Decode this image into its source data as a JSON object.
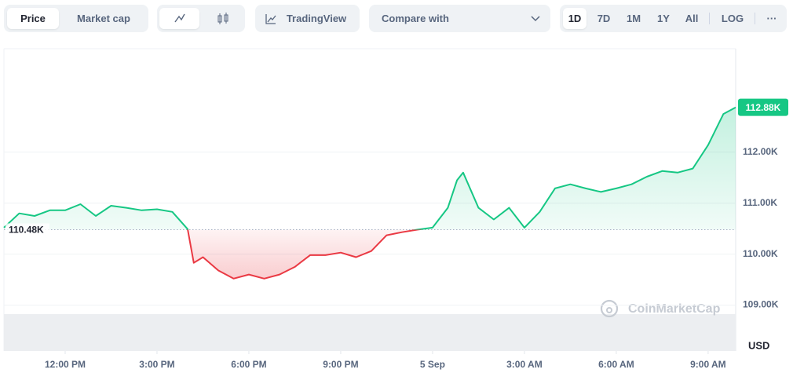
{
  "toolbar": {
    "tabs": [
      "Price",
      "Market cap"
    ],
    "tradingview": "TradingView",
    "compare": "Compare with",
    "ranges": [
      "1D",
      "7D",
      "1M",
      "1Y",
      "All"
    ],
    "log": "LOG",
    "more": "···"
  },
  "chart_data": {
    "type": "line",
    "x": [
      -2,
      -1.5,
      -1,
      -0.5,
      0,
      0.5,
      1,
      1.5,
      2,
      2.5,
      3,
      3.5,
      4,
      4.2,
      4.5,
      5,
      5.5,
      6,
      6.5,
      7,
      7.5,
      8,
      8.5,
      9,
      9.5,
      10,
      10.5,
      11,
      11.5,
      12,
      12.5,
      12.8,
      13,
      13.5,
      14,
      14.5,
      15,
      15.5,
      16,
      16.5,
      17,
      17.5,
      18,
      18.5,
      19,
      19.5,
      20,
      20.5,
      21,
      21.5,
      21.9
    ],
    "values": [
      110520,
      110800,
      110750,
      110860,
      110860,
      110980,
      110750,
      110950,
      110910,
      110860,
      110880,
      110830,
      110490,
      109830,
      109940,
      109680,
      109520,
      109600,
      109520,
      109600,
      109750,
      109980,
      109980,
      110030,
      109940,
      110060,
      110370,
      110430,
      110480,
      110520,
      110910,
      111450,
      111600,
      110910,
      110680,
      110910,
      110520,
      110830,
      111290,
      111370,
      111290,
      111220,
      111290,
      111370,
      111520,
      111630,
      111600,
      111680,
      112140,
      112750,
      112880
    ],
    "color_up": "#16c784",
    "color_down": "#ea3943",
    "baseline": {
      "value": 110480,
      "label": "110.48K"
    },
    "current": {
      "value": 112880,
      "label": "112.88K"
    },
    "xlim": [
      -2,
      21.9
    ],
    "xticks": [
      {
        "value": 0,
        "label": "12:00 PM"
      },
      {
        "value": 3,
        "label": "3:00 PM"
      },
      {
        "value": 6,
        "label": "6:00 PM"
      },
      {
        "value": 9,
        "label": "9:00 PM"
      },
      {
        "value": 12,
        "label": "5 Sep"
      },
      {
        "value": 15,
        "label": "3:00 AM"
      },
      {
        "value": 18,
        "label": "6:00 AM"
      },
      {
        "value": 21,
        "label": "9:00 AM"
      }
    ],
    "ylim": [
      108100,
      114030
    ],
    "yticks": [
      {
        "value": 109000,
        "label": "109.00K"
      },
      {
        "value": 110000,
        "label": "110.00K"
      },
      {
        "value": 111000,
        "label": "111.00K"
      },
      {
        "value": 112000,
        "label": "112.00K"
      }
    ],
    "grid": true,
    "currency": "USD",
    "watermark": "CoinMarketCap"
  }
}
